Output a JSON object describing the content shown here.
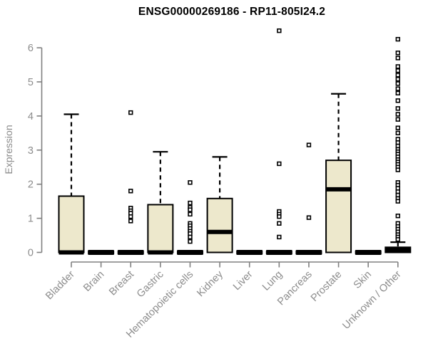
{
  "title": "ENSG00000269186 - RP11-805I24.2",
  "colors": {
    "box_fill": "#EDE8CC",
    "box_stroke": "#000000",
    "median": "#000000",
    "whisker": "#000000",
    "outlier_stroke": "#000000",
    "outlier_fill": "#ffffff",
    "axis_line": "#808080",
    "tick_text": "#8c8c8c",
    "title_text": "#000000",
    "background": "#ffffff"
  },
  "chart_data": {
    "type": "boxplot",
    "title": "ENSG00000269186 - RP11-805I24.2",
    "xlabel": "",
    "ylabel": "Expression",
    "ylim": [
      0,
      6.6
    ],
    "yticks": [
      0,
      1,
      2,
      3,
      4,
      5,
      6
    ],
    "grid": false,
    "legend": "none",
    "categories": [
      "Bladder",
      "Brain",
      "Breast",
      "Gastric",
      "Hematopoietic cells",
      "Kidney",
      "Liver",
      "Lung",
      "Pancreas",
      "Prostate",
      "Skin",
      "Unknown / Other"
    ],
    "series": [
      {
        "name": "Bladder",
        "whisker_low": 0,
        "q1": 0,
        "median": 0,
        "q3": 1.65,
        "whisker_high": 4.05,
        "outliers": []
      },
      {
        "name": "Brain",
        "whisker_low": 0,
        "q1": 0,
        "median": 0,
        "q3": 0,
        "whisker_high": 0,
        "outliers": []
      },
      {
        "name": "Breast",
        "whisker_low": 0,
        "q1": 0,
        "median": 0,
        "q3": 0,
        "whisker_high": 0,
        "outliers": [
          4.1,
          1.8,
          1.3,
          1.22,
          1.15,
          1.05,
          0.92
        ]
      },
      {
        "name": "Gastric",
        "whisker_low": 0,
        "q1": 0,
        "median": 0,
        "q3": 1.4,
        "whisker_high": 2.95,
        "outliers": []
      },
      {
        "name": "Hematopoietic cells",
        "whisker_low": 0,
        "q1": 0,
        "median": 0,
        "q3": 0,
        "whisker_high": 0,
        "outliers": [
          2.05,
          1.45,
          1.32,
          1.25,
          1.12,
          0.85,
          0.78,
          0.7,
          0.62,
          0.55,
          0.45,
          0.32
        ]
      },
      {
        "name": "Kidney",
        "whisker_low": 0,
        "q1": 0,
        "median": 0.6,
        "q3": 1.58,
        "whisker_high": 2.8,
        "outliers": []
      },
      {
        "name": "Liver",
        "whisker_low": 0,
        "q1": 0,
        "median": 0,
        "q3": 0,
        "whisker_high": 0,
        "outliers": []
      },
      {
        "name": "Lung",
        "whisker_low": 0,
        "q1": 0,
        "median": 0,
        "q3": 0,
        "whisker_high": 0,
        "outliers": [
          6.5,
          2.6,
          1.2,
          1.12,
          1.05,
          0.85,
          0.45
        ]
      },
      {
        "name": "Pancreas",
        "whisker_low": 0,
        "q1": 0,
        "median": 0,
        "q3": 0,
        "whisker_high": 0,
        "outliers": [
          3.15,
          1.02
        ]
      },
      {
        "name": "Prostate",
        "whisker_low": 0,
        "q1": 0,
        "median": 1.85,
        "q3": 2.7,
        "whisker_high": 4.65,
        "outliers": []
      },
      {
        "name": "Skin",
        "whisker_low": 0,
        "q1": 0,
        "median": 0,
        "q3": 0,
        "whisker_high": 0,
        "outliers": []
      },
      {
        "name": "Unknown / Other",
        "whisker_low": 0,
        "q1": 0,
        "median": 0.08,
        "q3": 0.15,
        "whisker_high": 0.3,
        "outliers": [
          6.25,
          5.85,
          5.7,
          5.45,
          5.33,
          5.2,
          5.08,
          4.95,
          4.8,
          4.67,
          4.45,
          4.22,
          4.05,
          3.9,
          3.65,
          3.5,
          3.32,
          3.22,
          3.12,
          3.02,
          2.95,
          2.88,
          2.8,
          2.72,
          2.65,
          2.58,
          2.5,
          2.42,
          2.05,
          1.97,
          1.88,
          1.78,
          1.68,
          1.58,
          1.5,
          1.07,
          0.85,
          0.76,
          0.68,
          0.6,
          0.52,
          0.45,
          0.38
        ]
      }
    ]
  }
}
